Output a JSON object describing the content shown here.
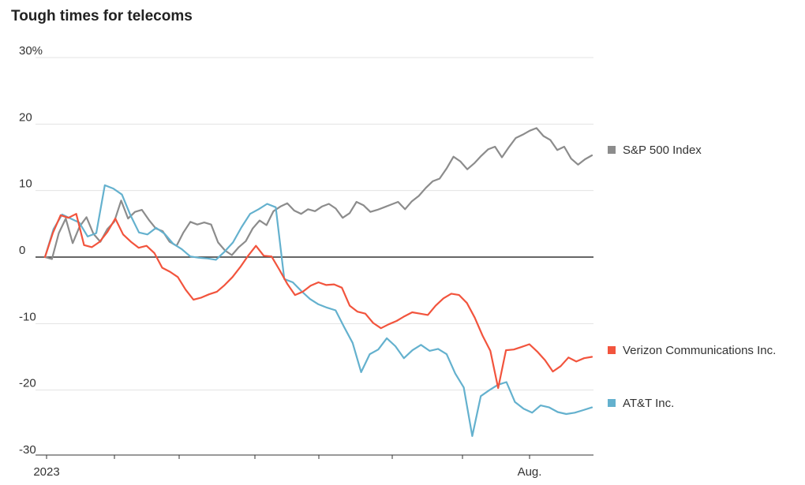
{
  "title": "Tough times for telecoms",
  "chart_data": {
    "type": "line",
    "title": "Tough times for telecoms",
    "xlabel": "",
    "ylabel": "",
    "x_tick_labels": [
      "2023",
      "Aug."
    ],
    "y_ticks": [
      {
        "value": 30,
        "label": "30%"
      },
      {
        "value": 20,
        "label": "20"
      },
      {
        "value": 10,
        "label": "10"
      },
      {
        "value": 0,
        "label": "0"
      },
      {
        "value": -10,
        "label": "-10"
      },
      {
        "value": -20,
        "label": "-20"
      },
      {
        "value": -30,
        "label": "-30"
      }
    ],
    "ylim": [
      -30,
      30
    ],
    "grid": "horizontal",
    "zero_line": true,
    "legend_placement": "right, beside series ends",
    "series": [
      {
        "name": "S&P 500 Index",
        "color": "#8c8c8c",
        "values": [
          0,
          -0.3,
          3.6,
          5.8,
          2.1,
          4.6,
          6.0,
          3.5,
          2.3,
          4.2,
          5.3,
          8.5,
          5.8,
          6.8,
          7.1,
          5.6,
          4.3,
          3.9,
          2.3,
          1.7,
          3.7,
          5.3,
          4.9,
          5.2,
          4.9,
          2.2,
          1.0,
          0.3,
          1.5,
          2.4,
          4.3,
          5.5,
          4.8,
          6.9,
          7.6,
          8.1,
          7.0,
          6.5,
          7.2,
          6.9,
          7.6,
          8.0,
          7.3,
          5.9,
          6.6,
          8.3,
          7.8,
          6.8,
          7.1,
          7.5,
          7.9,
          8.3,
          7.2,
          8.4,
          9.2,
          10.4,
          11.4,
          11.8,
          13.3,
          15.1,
          14.4,
          13.2,
          14.1,
          15.2,
          16.2,
          16.6,
          15.0,
          16.5,
          17.9,
          18.4,
          19.0,
          19.4,
          18.2,
          17.6,
          16.1,
          16.6,
          14.8,
          13.9,
          14.7,
          15.3
        ]
      },
      {
        "name": "Verizon Communications Inc.",
        "color": "#f2543d",
        "values": [
          0,
          3.6,
          6.3,
          5.9,
          6.5,
          1.8,
          1.5,
          2.3,
          3.8,
          5.8,
          3.4,
          2.3,
          1.4,
          1.7,
          0.6,
          -1.6,
          -2.2,
          -3.0,
          -4.9,
          -6.4,
          -6.1,
          -5.6,
          -5.2,
          -4.2,
          -3.0,
          -1.5,
          0.2,
          1.7,
          0.2,
          0.1,
          -1.9,
          -4.0,
          -5.7,
          -5.2,
          -4.3,
          -3.8,
          -4.2,
          -4.1,
          -4.6,
          -7.3,
          -8.2,
          -8.5,
          -9.9,
          -10.7,
          -10.1,
          -9.6,
          -8.9,
          -8.3,
          -8.5,
          -8.7,
          -7.3,
          -6.2,
          -5.5,
          -5.7,
          -6.9,
          -9.1,
          -11.8,
          -14.1,
          -19.7,
          -14.0,
          -13.9,
          -13.5,
          -13.1,
          -14.2,
          -15.5,
          -17.2,
          -16.4,
          -15.1,
          -15.7,
          -15.2,
          -15.0
        ]
      },
      {
        "name": "AT&T Inc.",
        "color": "#64b1ce",
        "values": [
          0,
          4.2,
          6.4,
          5.8,
          5.2,
          3.1,
          3.6,
          10.8,
          10.3,
          9.4,
          6.3,
          3.7,
          3.4,
          4.4,
          3.5,
          2.0,
          1.2,
          0.1,
          -0.1,
          -0.2,
          -0.4,
          0.8,
          2.2,
          4.5,
          6.5,
          7.2,
          8.0,
          7.5,
          -3.3,
          -3.8,
          -5.1,
          -6.3,
          -7.1,
          -7.6,
          -8.0,
          -10.5,
          -12.9,
          -17.3,
          -14.6,
          -13.9,
          -12.2,
          -13.4,
          -15.2,
          -14.0,
          -13.2,
          -14.1,
          -13.8,
          -14.6,
          -17.5,
          -19.6,
          -26.9,
          -20.9,
          -20.0,
          -19.2,
          -18.8,
          -21.8,
          -22.8,
          -23.4,
          -22.3,
          -22.6,
          -23.3,
          -23.6,
          -23.4,
          -23.0,
          -22.6
        ]
      }
    ]
  }
}
